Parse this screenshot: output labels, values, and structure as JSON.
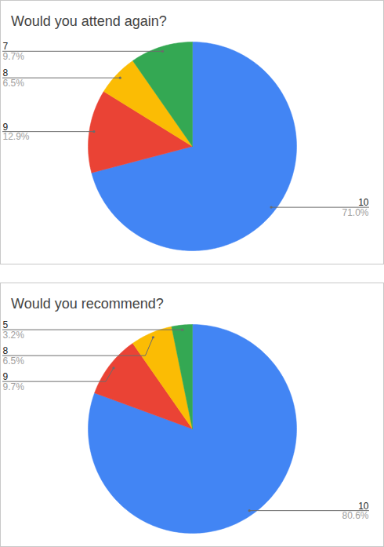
{
  "chart_data": [
    {
      "type": "pie",
      "title": "Would you attend again?",
      "categories": [
        "10",
        "9",
        "8",
        "7"
      ],
      "values": [
        71.0,
        12.9,
        6.5,
        9.7
      ],
      "value_labels": [
        "71.0%",
        "12.9%",
        "6.5%",
        "9.7%"
      ],
      "colors": [
        "#4285f4",
        "#ea4335",
        "#fbbc04",
        "#34a853"
      ],
      "data_labels": true
    },
    {
      "type": "pie",
      "title": "Would you recommend?",
      "categories": [
        "10",
        "9",
        "8",
        "5"
      ],
      "values": [
        80.6,
        9.7,
        6.5,
        3.2
      ],
      "value_labels": [
        "80.6%",
        "9.7%",
        "6.5%",
        "3.2%"
      ],
      "colors": [
        "#4285f4",
        "#ea4335",
        "#fbbc04",
        "#34a853"
      ],
      "data_labels": true
    }
  ]
}
